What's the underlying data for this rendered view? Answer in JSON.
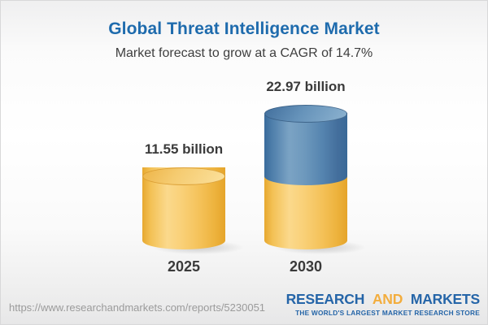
{
  "header": {
    "title": "Global Threat Intelligence Market",
    "subtitle": "Market forecast to grow at a CAGR of 14.7%"
  },
  "chart_data": {
    "type": "bar",
    "variant": "3d-cylinder",
    "title": "Global Threat Intelligence Market",
    "subtitle": "Market forecast to grow at a CAGR of 14.7%",
    "cagr_pct": 14.7,
    "unit": "billion",
    "categories": [
      "2025",
      "2030"
    ],
    "values": [
      11.55,
      22.97
    ],
    "value_labels": [
      "11.55 billion",
      "22.97 billion"
    ],
    "segments": [
      [
        {
          "value": 11.55,
          "color": "gold"
        }
      ],
      [
        {
          "value": 11.55,
          "color": "gold"
        },
        {
          "value": 11.42,
          "color": "blue"
        }
      ]
    ],
    "legend": "none",
    "axes": "none",
    "grid": false
  },
  "footer": {
    "url": "https://www.researchandmarkets.com/reports/5230051",
    "logo": {
      "research": "RESEARCH",
      "and": "AND",
      "markets": "MARKETS",
      "tagline": "THE WORLD'S LARGEST MARKET RESEARCH STORE"
    }
  },
  "colors": {
    "title_blue": "#1e6bad",
    "bar_gold": "#f6c863",
    "bar_blue": "#4f7fab",
    "logo_blue": "#2565a8",
    "logo_gold": "#f3ad3d",
    "text_dark": "#3a3a3a",
    "url_gray": "#9b9b9b"
  }
}
